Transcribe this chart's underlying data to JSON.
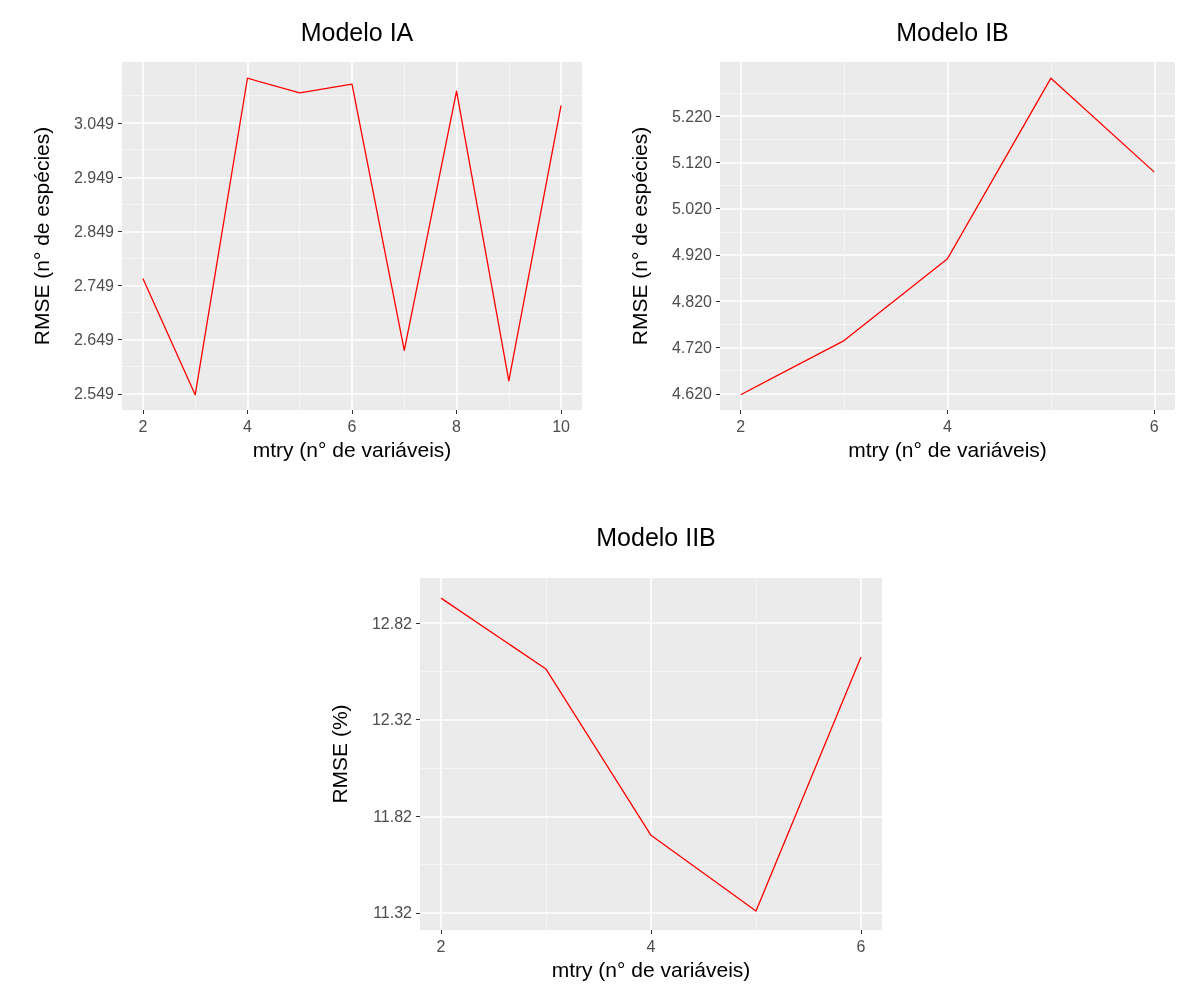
{
  "chart_data": [
    {
      "type": "line",
      "title": "Modelo IA",
      "xlabel": "mtry (n° de variáveis)",
      "ylabel": "RMSE (n° de espécies)",
      "x": [
        2,
        3,
        4,
        5,
        6,
        7,
        8,
        9,
        10
      ],
      "series": [
        {
          "color": "#ff0000",
          "values": [
            2.762,
            2.547,
            3.132,
            3.105,
            3.121,
            2.629,
            3.108,
            2.573,
            3.082
          ]
        }
      ],
      "xlim": [
        1.6,
        10.4
      ],
      "xticks": [
        2,
        4,
        6,
        8,
        10
      ],
      "ylim": [
        2.519,
        3.162
      ],
      "yticks": [
        2.549,
        2.649,
        2.749,
        2.849,
        2.949,
        3.049
      ],
      "grid": true,
      "marker": "none",
      "line_style": "solid"
    },
    {
      "type": "line",
      "title": "Modelo IB",
      "xlabel": "mtry (n° de variáveis)",
      "ylabel": "RMSE (n° de espécies)",
      "x": [
        2,
        3,
        4,
        5,
        6
      ],
      "series": [
        {
          "color": "#ff0000",
          "values": [
            4.618,
            4.735,
            4.912,
            5.302,
            5.099
          ]
        }
      ],
      "xlim": [
        1.8,
        6.2
      ],
      "xticks": [
        2,
        4,
        6
      ],
      "ylim": [
        4.585,
        5.337
      ],
      "yticks": [
        {
          "value": 4.62,
          "label": "4.620"
        },
        {
          "value": 4.72,
          "label": "4.720"
        },
        {
          "value": 4.82,
          "label": "4.820"
        },
        {
          "value": 4.92,
          "label": "4.920"
        },
        {
          "value": 5.02,
          "label": "5.020"
        },
        {
          "value": 5.12,
          "label": "5.120"
        },
        {
          "value": 5.22,
          "label": "5.220"
        }
      ],
      "grid": true,
      "marker": "none",
      "line_style": "solid"
    },
    {
      "type": "line",
      "title": "Modelo IIB",
      "xlabel": "mtry (n° de variáveis)",
      "ylabel": "RMSE (%)",
      "x": [
        2,
        3,
        4,
        5,
        6
      ],
      "series": [
        {
          "color": "#ff0000",
          "values": [
            12.949,
            12.582,
            11.722,
            11.33,
            12.644
          ]
        }
      ],
      "xlim": [
        1.8,
        6.2
      ],
      "xticks": [
        2,
        4,
        6
      ],
      "ylim": [
        11.232,
        13.053
      ],
      "yticks": [
        11.32,
        11.82,
        12.32,
        12.82
      ],
      "grid": true,
      "marker": "none",
      "line_style": "solid"
    }
  ]
}
